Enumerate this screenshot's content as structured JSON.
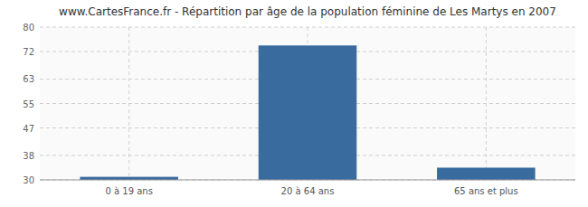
{
  "chart_data": {
    "type": "bar",
    "title": "www.CartesFrance.fr - Répartition par âge de la population féminine de Les Martys en 2007",
    "categories": [
      "0 à 19 ans",
      "20 à 64 ans",
      "65 ans et plus"
    ],
    "values": [
      31,
      74,
      34
    ],
    "color": "#3a6b9e",
    "ylim": [
      30,
      80
    ],
    "yticks": [
      30,
      38,
      47,
      55,
      63,
      72,
      80
    ],
    "grid": true
  }
}
